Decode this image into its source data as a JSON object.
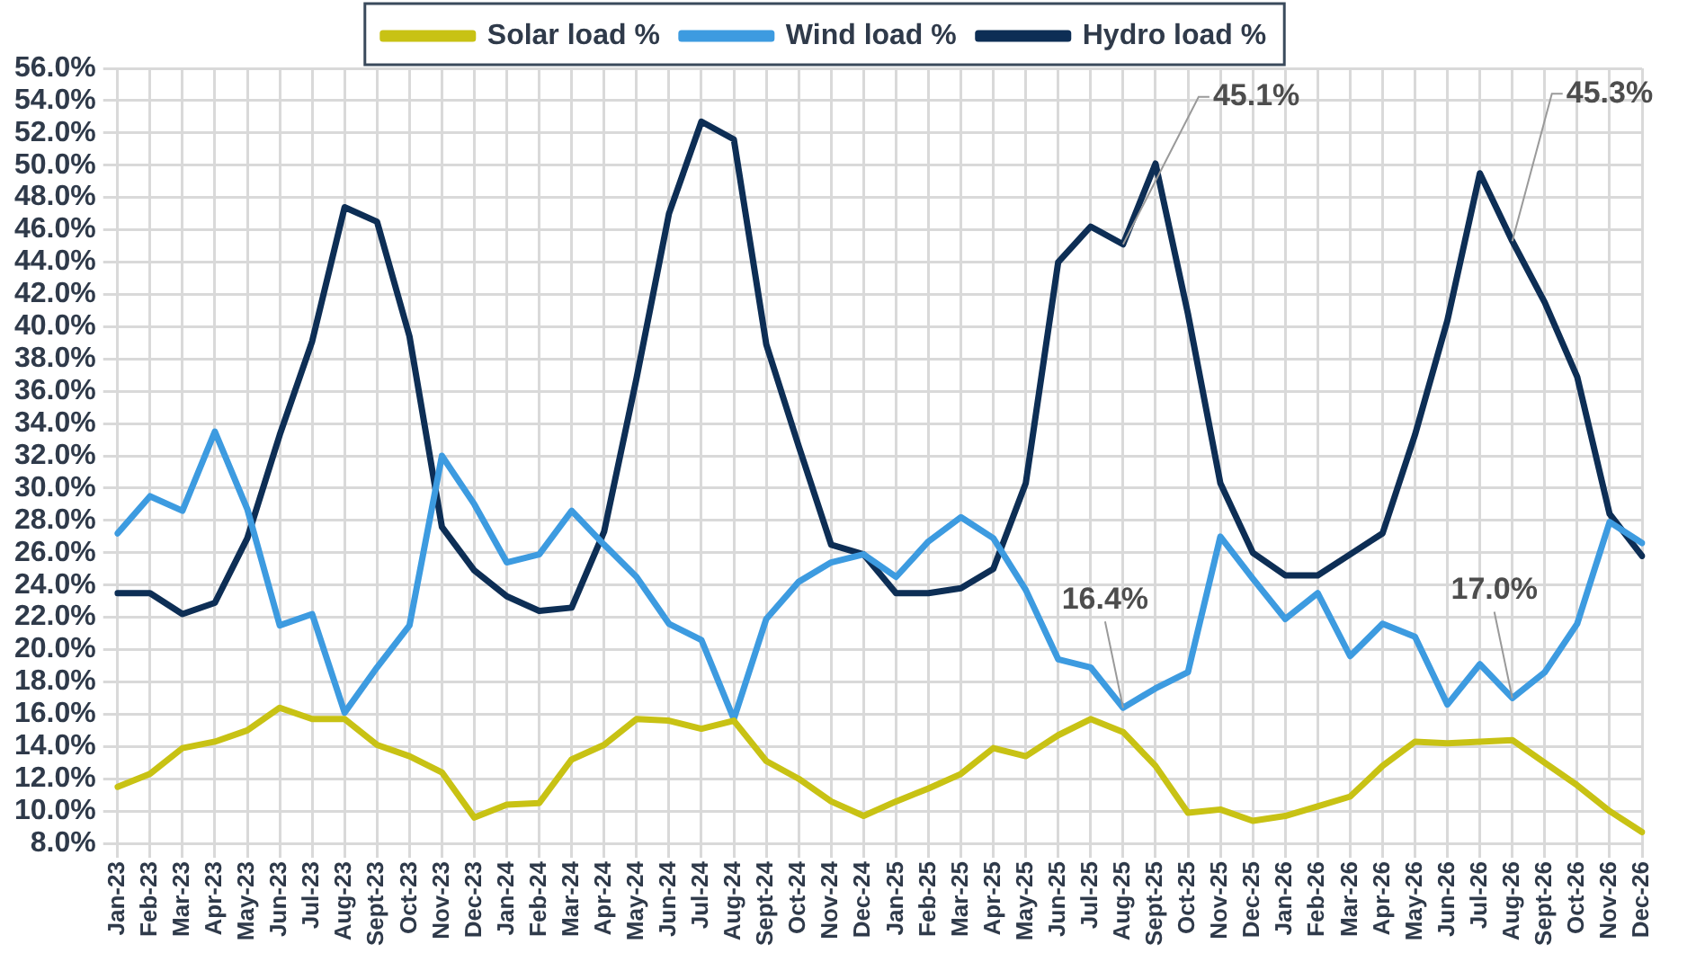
{
  "chart_data": {
    "type": "line",
    "categories": [
      "Jan-23",
      "Feb-23",
      "Mar-23",
      "Apr-23",
      "May-23",
      "Jun-23",
      "Jul-23",
      "Aug-23",
      "Sept-23",
      "Oct-23",
      "Nov-23",
      "Dec-23",
      "Jan-24",
      "Feb-24",
      "Mar-24",
      "Apr-24",
      "May-24",
      "Jun-24",
      "Jul-24",
      "Aug-24",
      "Sept-24",
      "Oct-24",
      "Nov-24",
      "Dec-24",
      "Jan-25",
      "Feb-25",
      "Mar-25",
      "Apr-25",
      "May-25",
      "Jun-25",
      "Jul-25",
      "Aug-25",
      "Sept-25",
      "Oct-25",
      "Nov-25",
      "Dec-25",
      "Jan-26",
      "Feb-26",
      "Mar-26",
      "Apr-26",
      "May-26",
      "Jun-26",
      "Jul-26",
      "Aug-26",
      "Sept-26",
      "Oct-26",
      "Nov-26",
      "Dec-26"
    ],
    "series": [
      {
        "name": "Solar load %",
        "color": "#c8c214",
        "values": [
          11.5,
          12.3,
          13.9,
          14.3,
          15.0,
          16.4,
          15.7,
          15.7,
          14.1,
          13.4,
          12.4,
          9.6,
          10.4,
          10.5,
          13.2,
          14.1,
          15.7,
          15.6,
          15.1,
          15.6,
          13.1,
          12.0,
          10.6,
          9.7,
          10.6,
          11.4,
          12.3,
          13.9,
          13.4,
          14.7,
          15.7,
          14.9,
          12.8,
          9.9,
          10.1,
          9.4,
          9.7,
          10.3,
          10.9,
          12.8,
          14.3,
          14.2,
          14.3,
          14.4,
          13.0,
          11.6,
          10.0,
          8.7
        ]
      },
      {
        "name": "Wind load %",
        "color": "#3d9be0",
        "values": [
          27.2,
          29.5,
          28.6,
          33.5,
          28.7,
          21.5,
          22.2,
          16.1,
          18.9,
          21.5,
          32.0,
          29.0,
          25.4,
          25.9,
          28.6,
          26.5,
          24.5,
          21.6,
          20.6,
          15.7,
          21.9,
          24.2,
          25.4,
          25.9,
          24.5,
          26.7,
          28.2,
          26.9,
          23.7,
          19.4,
          18.9,
          16.4,
          17.6,
          18.6,
          27.0,
          24.4,
          21.9,
          23.5,
          19.6,
          21.6,
          20.8,
          16.6,
          19.1,
          17.0,
          18.6,
          21.6,
          27.9,
          26.6
        ]
      },
      {
        "name": "Hydro load %",
        "color": "#0d2e55",
        "values": [
          23.5,
          23.5,
          22.2,
          22.9,
          26.9,
          33.3,
          39.1,
          47.4,
          46.5,
          39.4,
          27.6,
          24.9,
          23.3,
          22.4,
          22.6,
          27.3,
          36.8,
          47.0,
          52.7,
          51.6,
          38.9,
          32.6,
          26.5,
          25.9,
          23.5,
          23.5,
          23.8,
          25.0,
          30.3,
          44.0,
          46.2,
          45.1,
          50.1,
          40.8,
          30.3,
          26.0,
          24.6,
          24.6,
          25.9,
          27.2,
          33.3,
          40.4,
          49.5,
          45.3,
          41.5,
          36.9,
          28.4,
          25.8
        ]
      }
    ],
    "ylim": [
      8,
      56
    ],
    "yticks": [
      {
        "value": 8,
        "label": "8.0%"
      },
      {
        "value": 10,
        "label": "10.0%"
      },
      {
        "value": 12,
        "label": "12.0%"
      },
      {
        "value": 14,
        "label": "14.0%"
      },
      {
        "value": 16,
        "label": "16.0%"
      },
      {
        "value": 18,
        "label": "18.0%"
      },
      {
        "value": 20,
        "label": "20.0%"
      },
      {
        "value": 22,
        "label": "22.0%"
      },
      {
        "value": 24,
        "label": "24.0%"
      },
      {
        "value": 26,
        "label": "26.0%"
      },
      {
        "value": 28,
        "label": "28.0%"
      },
      {
        "value": 30,
        "label": "30.0%"
      },
      {
        "value": 32,
        "label": "32.0%"
      },
      {
        "value": 34,
        "label": "34.0%"
      },
      {
        "value": 36,
        "label": "36.0%"
      },
      {
        "value": 38,
        "label": "38.0%"
      },
      {
        "value": 40,
        "label": "40.0%"
      },
      {
        "value": 42,
        "label": "42.0%"
      },
      {
        "value": 44,
        "label": "44.0%"
      },
      {
        "value": 46,
        "label": "46.0%"
      },
      {
        "value": 48,
        "label": "48.0%"
      },
      {
        "value": 50,
        "label": "50.0%"
      },
      {
        "value": 52,
        "label": "52.0%"
      },
      {
        "value": 54,
        "label": "54.0%"
      },
      {
        "value": 56,
        "label": "56.0%"
      }
    ],
    "annotations": [
      {
        "text": "45.1%",
        "x": "Aug-25",
        "y": 45.1
      },
      {
        "text": "45.3%",
        "x": "Aug-26",
        "y": 45.3
      },
      {
        "text": "16.4%",
        "x": "Aug-25",
        "y": 16.4
      },
      {
        "text": "17.0%",
        "x": "Aug-26",
        "y": 17.0
      }
    ],
    "grid": true,
    "legend": "top",
    "marker": "none",
    "line_style": "solid"
  }
}
